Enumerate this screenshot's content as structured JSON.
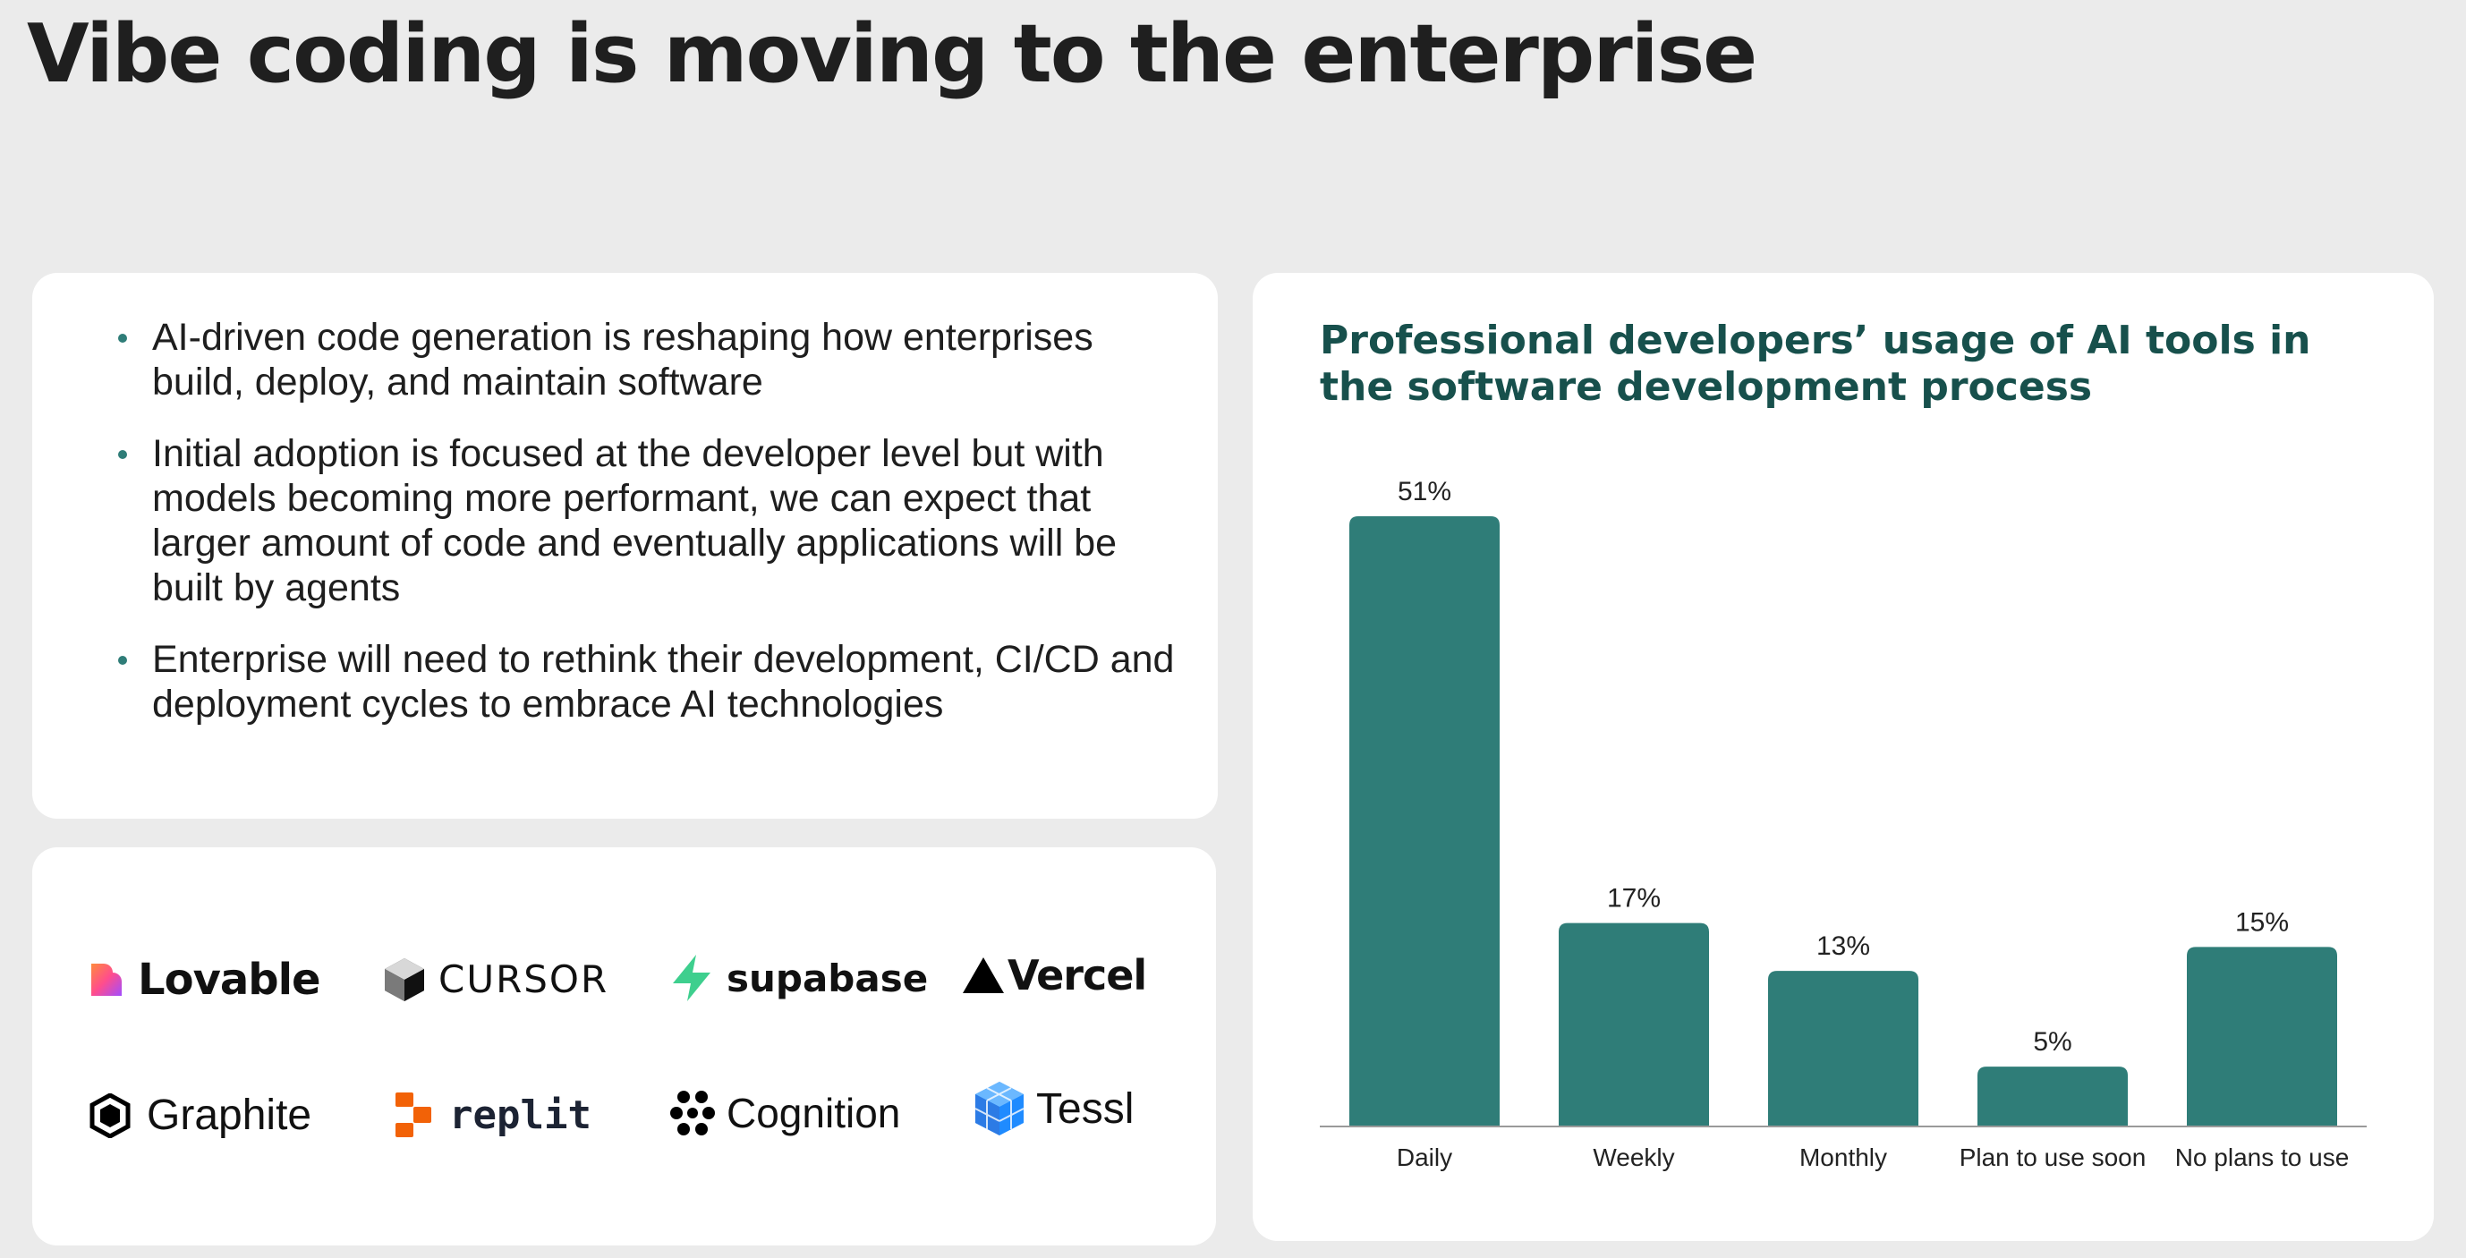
{
  "page": {
    "title": "Vibe coding is moving to the enterprise"
  },
  "bullets": [
    "AI-driven code generation is reshaping how enterprises build, deploy, and maintain software",
    "Initial adoption is focused at the developer level but with models becoming more performant, we can expect that larger amount of code and eventually applications will be built by agents",
    "Enterprise will need to rethink their development, CI/CD and deployment cycles to embrace AI technologies"
  ],
  "logos": [
    {
      "name": "Lovable",
      "icon": "heart-gradient-icon"
    },
    {
      "name": "CURSOR",
      "icon": "cube-icon"
    },
    {
      "name": "supabase",
      "icon": "bolt-icon"
    },
    {
      "name": "Vercel",
      "icon": "triangle-icon"
    },
    {
      "name": "Graphite",
      "icon": "hexagon-icon"
    },
    {
      "name": "replit",
      "icon": "replit-blocks-icon"
    },
    {
      "name": "Cognition",
      "icon": "flower-icon"
    },
    {
      "name": "Tessl",
      "icon": "tessl-cube-icon"
    }
  ],
  "colors": {
    "background": "#ebebeb",
    "card": "#ffffff",
    "bar": "#2f7d78",
    "chart_title": "#17504c",
    "bullet_dot": "#2f7d78",
    "lovable_gradient": [
      "#ff4d8d",
      "#ff8a3d",
      "#a14dff"
    ],
    "supabase": "#3ecf8e",
    "replit": "#f26207",
    "tessl": "#1f8bff"
  },
  "chart_data": {
    "type": "bar",
    "title": "Professional developers’ usage of AI tools in the software development process",
    "categories": [
      "Daily",
      "Weekly",
      "Monthly",
      "Plan to use soon",
      "No plans to use"
    ],
    "values": [
      51,
      17,
      13,
      5,
      15
    ],
    "value_labels": [
      "51%",
      "17%",
      "13%",
      "5%",
      "15%"
    ],
    "unit": "%",
    "ylim": [
      0,
      51
    ],
    "xlabel": "",
    "ylabel": "",
    "grid": false,
    "legend": "none"
  }
}
